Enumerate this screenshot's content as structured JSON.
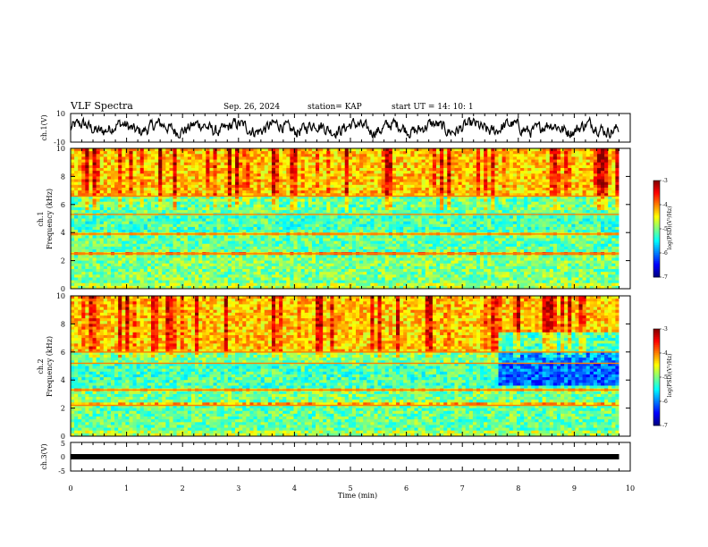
{
  "header": {
    "title": "VLF Spectra",
    "date": "Sep. 26, 2024",
    "station": "station= KAP",
    "start_ut": "start  UT  =   14: 10: 1"
  },
  "chart_data": [
    {
      "id": "ch1_waveform",
      "type": "line",
      "ylabel": "ch.1(V)",
      "ylim": [
        -10,
        10
      ],
      "yticks": [
        "10",
        "-10"
      ],
      "x_range_min": [
        0,
        9.8
      ],
      "description_values": "Voltage fluctuates roughly between -6 and 6 V across the record",
      "line_color": "#000000"
    },
    {
      "id": "ch1_spectrogram",
      "type": "heatmap",
      "ylabel": "ch.1\nFrequency (kHz)",
      "ylabel_line1": "ch.1",
      "ylabel_line2": "Frequency (kHz)",
      "ylim": [
        0,
        10
      ],
      "yticks": [
        "0",
        "2",
        "4",
        "6",
        "8",
        "10"
      ],
      "x_range_min": [
        0,
        9.8
      ],
      "colorbar": {
        "label": "log(PSD)(V²/Hz)",
        "ticks": [
          "-3",
          "-4",
          "-5",
          "-6",
          "-7"
        ],
        "range": [
          -7,
          -3
        ]
      },
      "bands_khz": [
        {
          "from": 0,
          "to": 0.5,
          "level": -4.8
        },
        {
          "from": 0.5,
          "to": 2.4,
          "level": -5.0
        },
        {
          "from": 2.4,
          "to": 2.7,
          "level": -4.0
        },
        {
          "from": 2.7,
          "to": 3.7,
          "level": -5.1
        },
        {
          "from": 3.7,
          "to": 4.0,
          "level": -4.3
        },
        {
          "from": 4.0,
          "to": 5.3,
          "level": -5.2
        },
        {
          "from": 5.3,
          "to": 6.6,
          "level": -5.1
        },
        {
          "from": 6.6,
          "to": 10,
          "level": -4.3
        }
      ]
    },
    {
      "id": "ch2_spectrogram",
      "type": "heatmap",
      "ylabel_line1": "ch.2",
      "ylabel_line2": "Frequency (kHz)",
      "ylim": [
        0,
        10
      ],
      "yticks": [
        "0",
        "2",
        "4",
        "6",
        "8",
        "10"
      ],
      "x_range_min": [
        0,
        9.8
      ],
      "colorbar": {
        "label": "log(PSD)(V²/Hz)",
        "ticks": [
          "-3",
          "-4",
          "-5",
          "-6",
          "-7"
        ],
        "range": [
          -7,
          -3
        ]
      },
      "bands_khz": [
        {
          "from": 0,
          "to": 0.5,
          "level": -4.8
        },
        {
          "from": 0.5,
          "to": 2.1,
          "level": -5.1
        },
        {
          "from": 2.1,
          "to": 2.4,
          "level": -4.2
        },
        {
          "from": 2.4,
          "to": 3.2,
          "level": -5.0
        },
        {
          "from": 3.2,
          "to": 3.4,
          "level": -4.3
        },
        {
          "from": 3.4,
          "to": 5.2,
          "level": -5.2
        },
        {
          "from": 5.2,
          "to": 6.0,
          "level": -5.0
        },
        {
          "from": 6.0,
          "to": 10,
          "level": -4.3
        }
      ]
    },
    {
      "id": "ch3_waveform",
      "type": "line",
      "ylabel": "ch.3(V)",
      "ylim": [
        -5,
        5
      ],
      "yticks": [
        "5",
        "0",
        "-5"
      ],
      "x_range_min": [
        0,
        9.8
      ],
      "value": 0,
      "line_color": "#000000"
    }
  ],
  "xaxis": {
    "label": "Time (min)",
    "ticks": [
      "0",
      "1",
      "2",
      "3",
      "4",
      "5",
      "6",
      "7",
      "8",
      "9",
      "10"
    ],
    "range": [
      0,
      10
    ]
  }
}
